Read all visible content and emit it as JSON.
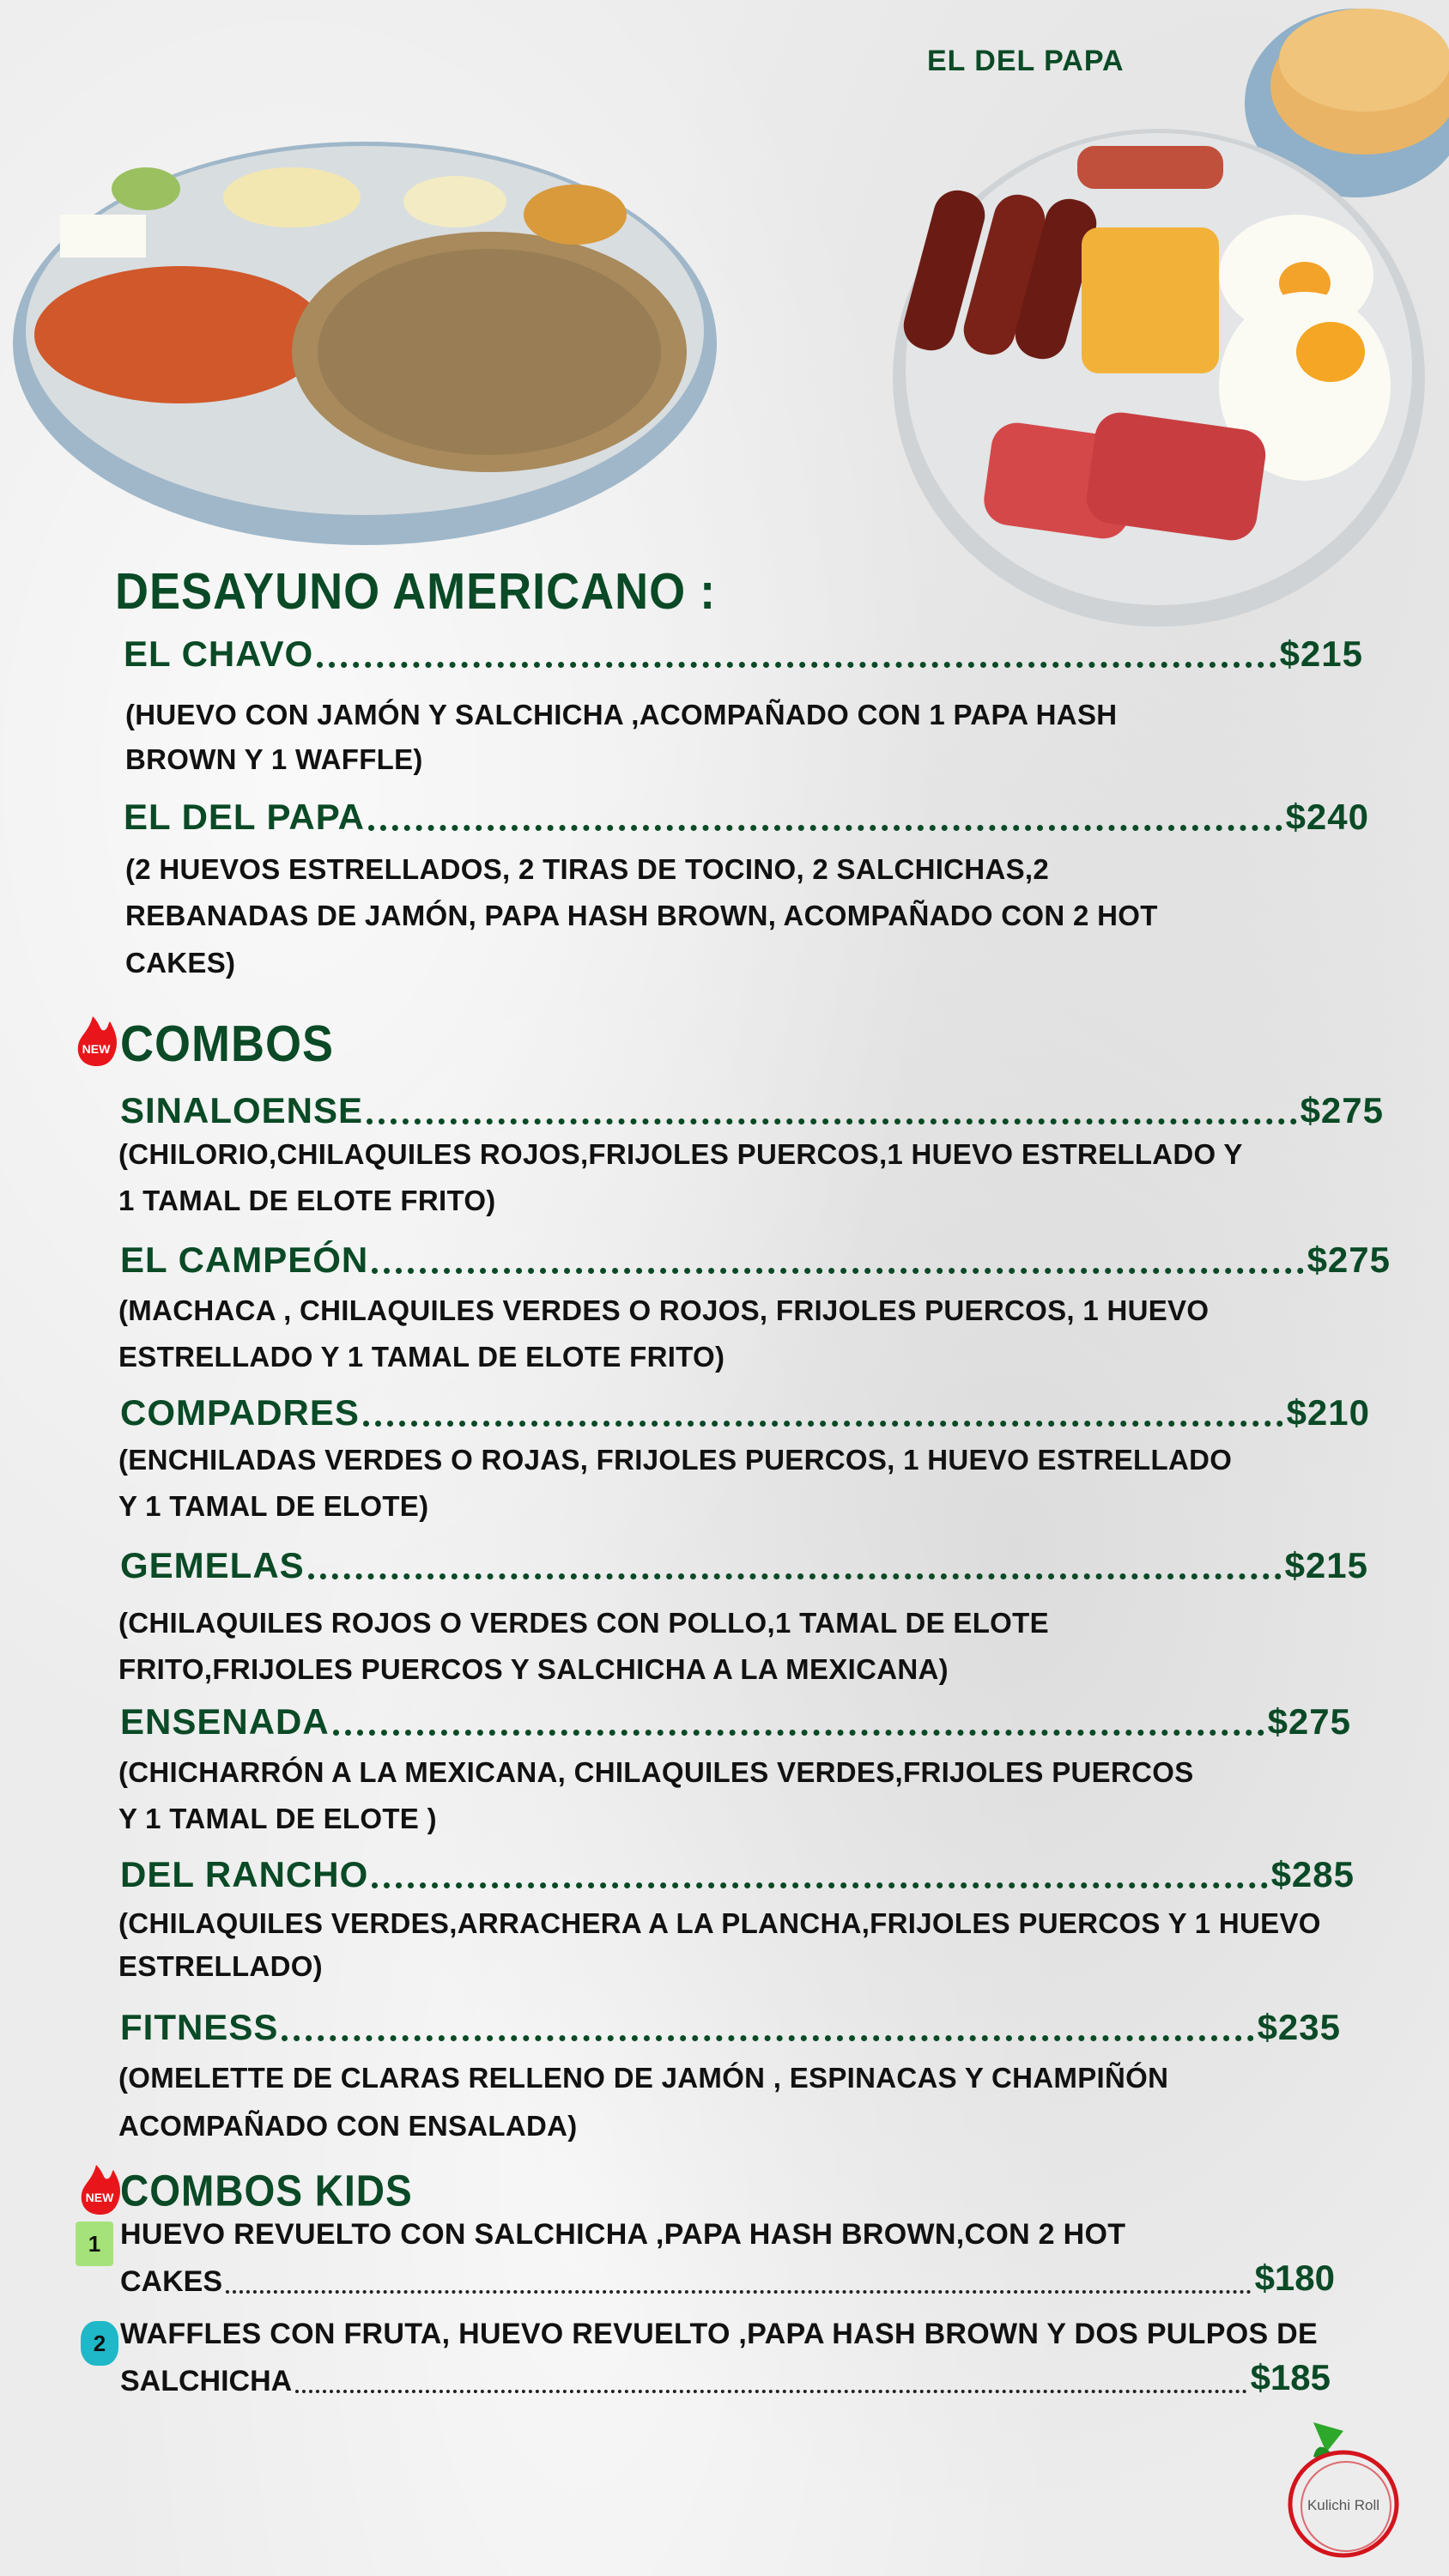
{
  "photo_caption": "EL DEL PAPA",
  "sections": {
    "desayuno": "DESAYUNO AMERICANO :",
    "combos": "COMBOS",
    "kids": "COMBOS KIDS"
  },
  "new_badge": "NEW",
  "desayuno_items": [
    {
      "name": "EL CHAVO",
      "price": "$215",
      "desc": [
        "(HUEVO CON JAMÓN Y SALCHICHA ,ACOMPAÑADO CON 1 PAPA HASH",
        "BROWN Y 1 WAFFLE)"
      ]
    },
    {
      "name": "EL DEL  PAPA",
      "price": "$240",
      "desc": [
        "(2 HUEVOS ESTRELLADOS, 2 TIRAS DE  TOCINO, 2 SALCHICHAS,2",
        "REBANADAS DE JAMÓN, PAPA HASH BROWN, ACOMPAÑADO CON 2 HOT",
        "CAKES)"
      ]
    }
  ],
  "combo_items": [
    {
      "name": "SINALOENSE",
      "price": "$275",
      "desc": [
        "(CHILORIO,CHILAQUILES  ROJOS,FRIJOLES PUERCOS,1 HUEVO ESTRELLADO Y",
        "1 TAMAL DE ELOTE FRITO)"
      ]
    },
    {
      "name": "EL CAMPEÓN",
      "price": "$275",
      "desc": [
        "(MACHACA , CHILAQUILES  VERDES O ROJOS, FRIJOLES PUERCOS, 1 HUEVO",
        "ESTRELLADO Y 1 TAMAL DE ELOTE FRITO)"
      ]
    },
    {
      "name": "COMPADRES",
      "price": "$210",
      "desc": [
        "(ENCHILADAS  VERDES O ROJAS, FRIJOLES PUERCOS, 1 HUEVO ESTRELLADO",
        "Y 1 TAMAL DE ELOTE)"
      ]
    },
    {
      "name": "GEMELAS",
      "price": "$215",
      "desc": [
        "(CHILAQUILES ROJOS O VERDES CON POLLO,1 TAMAL DE ELOTE",
        "FRITO,FRIJOLES PUERCOS Y SALCHICHA A LA MEXICANA)"
      ]
    },
    {
      "name": "ENSENADA",
      "price": "$275",
      "desc": [
        "(CHICHARRÓN A LA MEXICANA, CHILAQUILES VERDES,FRIJOLES PUERCOS",
        "Y 1 TAMAL DE ELOTE )"
      ]
    },
    {
      "name": "DEL RANCHO ",
      "price": "$285",
      "desc": [
        "(CHILAQUILES VERDES,ARRACHERA  A LA PLANCHA,FRIJOLES PUERCOS Y 1 HUEVO",
        "ESTRELLADO)"
      ]
    },
    {
      "name": "FITNESS",
      "price": "$235",
      "desc": [
        "(OMELETTE  DE CLARAS RELLENO DE JAMÓN , ESPINACAS Y CHAMPIÑÓN",
        "ACOMPAÑADO CON ENSALADA)"
      ]
    }
  ],
  "kids_items": [
    {
      "number": "1",
      "line1": "HUEVO REVUELTO CON SALCHICHA ,PAPA HASH BROWN,CON 2 HOT",
      "line2": "CAKES",
      "price": "$180",
      "badge_color": "#a6e27a"
    },
    {
      "number": "2",
      "line1": "WAFFLES CON FRUTA, HUEVO REVUELTO ,PAPA  HASH BROWN Y DOS PULPOS DE",
      "line2": "SALCHICHA ",
      "price": "$185",
      "badge_color": "#1fb8c8"
    }
  ],
  "logo_text": "Kulichi Roll",
  "colors": {
    "brand_green": "#0a4a26",
    "new_red": "#e8161b",
    "logo_red": "#d4141c"
  }
}
